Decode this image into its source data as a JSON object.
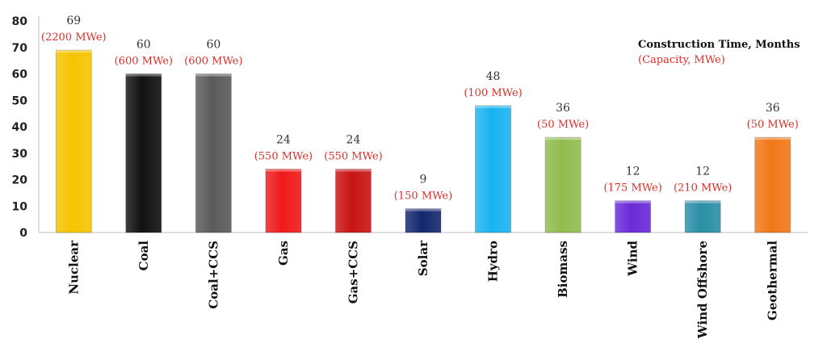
{
  "chart_data": {
    "type": "bar",
    "title": "",
    "xlabel": "",
    "ylabel": "",
    "ylim": [
      0,
      80
    ],
    "yticks": [
      0,
      10,
      20,
      30,
      40,
      50,
      60,
      70,
      80
    ],
    "grid": false,
    "legend": {
      "title": "Construction  Time, Months",
      "subtitle": "(Capacity, MWe)",
      "placement": "top-right"
    },
    "categories": [
      "Nuclear",
      "Coal",
      "Coal+CCS",
      "Gas",
      "Gas+CCS",
      "Solar",
      "Hydro",
      "Biomass",
      "Wind",
      "Wind Offshore",
      "Geothermal"
    ],
    "values": [
      69,
      60,
      60,
      24,
      24,
      9,
      48,
      36,
      12,
      12,
      36
    ],
    "capacity_labels": [
      "(2200 MWe)",
      "(600 MWe)",
      "(600 MWe)",
      "(550 MWe)",
      "(550 MWe)",
      "(150 MWe)",
      "(100 MWe)",
      "(50 MWe)",
      "(175 MWe)",
      "(210 MWe)",
      "(50 MWe)"
    ],
    "colors": [
      "#f5c400",
      "#111111",
      "#5a5a5a",
      "#f01a1a",
      "#c81414",
      "#14286e",
      "#18b4f0",
      "#92bc4e",
      "#6a2ad8",
      "#2a8fa6",
      "#f07818"
    ]
  }
}
